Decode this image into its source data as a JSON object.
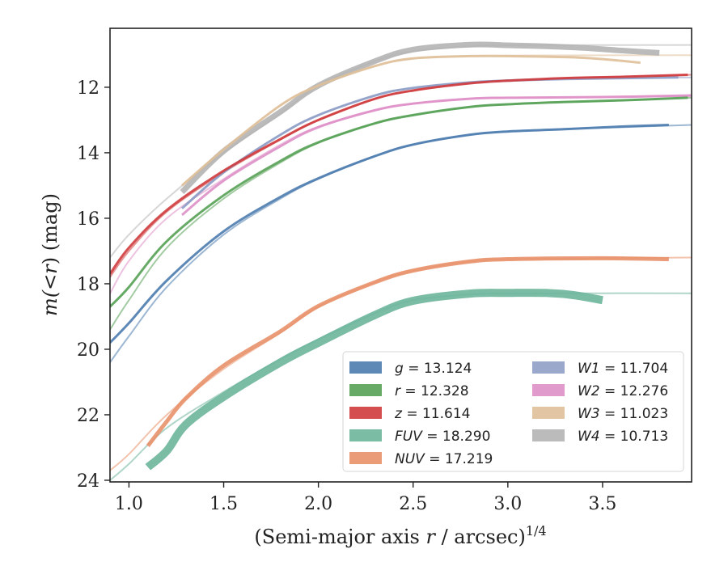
{
  "chart_data": {
    "type": "line",
    "xlabel_prefix": "(Semi-major axis ",
    "xlabel_var": "r",
    "xlabel_suffix": " / arcsec)",
    "xlabel_sup": "1/4",
    "ylabel_prefix": "m(<",
    "ylabel_var": "r",
    "ylabel_suffix": ") (mag)",
    "xlim": [
      0.9,
      3.97
    ],
    "ylim": [
      24.05,
      10.2
    ],
    "y_inverted": true,
    "x_ticks": [
      1.0,
      1.5,
      2.0,
      2.5,
      3.0,
      3.5
    ],
    "x_tick_labels": [
      "1.0",
      "1.5",
      "2.0",
      "2.5",
      "3.0",
      "3.5"
    ],
    "y_ticks": [
      12,
      14,
      16,
      18,
      20,
      22,
      24
    ],
    "y_tick_labels": [
      "12",
      "14",
      "16",
      "18",
      "20",
      "22",
      "24"
    ],
    "grid": false,
    "legend_position": "lower-right",
    "series": [
      {
        "key": "g",
        "var": "g",
        "value": "= 13.124",
        "color": "#4c7caf",
        "model": [
          [
            0.9,
            20.4
          ],
          [
            1.0,
            19.6
          ],
          [
            1.2,
            18.1
          ],
          [
            1.5,
            16.5
          ],
          [
            1.8,
            15.4
          ],
          [
            2.0,
            14.8
          ],
          [
            2.3,
            14.1
          ],
          [
            2.5,
            13.75
          ],
          [
            2.8,
            13.45
          ],
          [
            3.0,
            13.35
          ],
          [
            3.3,
            13.27
          ],
          [
            3.6,
            13.22
          ],
          [
            3.97,
            13.15
          ]
        ],
        "data": [
          [
            0.9,
            19.8
          ],
          [
            1.0,
            19.2
          ],
          [
            1.2,
            17.9
          ],
          [
            1.5,
            16.4
          ],
          [
            1.8,
            15.35
          ],
          [
            2.0,
            14.78
          ],
          [
            2.3,
            14.1
          ],
          [
            2.5,
            13.75
          ],
          [
            2.8,
            13.45
          ],
          [
            3.0,
            13.35
          ],
          [
            3.3,
            13.28
          ],
          [
            3.6,
            13.2
          ],
          [
            3.85,
            13.15
          ]
        ],
        "band_width": 3
      },
      {
        "key": "r",
        "var": "r",
        "value": "= 12.328",
        "color": "#55a155",
        "model": [
          [
            0.9,
            19.4
          ],
          [
            1.0,
            18.5
          ],
          [
            1.2,
            16.9
          ],
          [
            1.5,
            15.4
          ],
          [
            1.8,
            14.3
          ],
          [
            2.0,
            13.7
          ],
          [
            2.3,
            13.1
          ],
          [
            2.5,
            12.85
          ],
          [
            2.8,
            12.6
          ],
          [
            3.0,
            12.52
          ],
          [
            3.3,
            12.45
          ],
          [
            3.6,
            12.4
          ],
          [
            3.97,
            12.32
          ]
        ],
        "data": [
          [
            0.9,
            18.7
          ],
          [
            1.0,
            18.1
          ],
          [
            1.2,
            16.7
          ],
          [
            1.5,
            15.3
          ],
          [
            1.8,
            14.25
          ],
          [
            2.0,
            13.68
          ],
          [
            2.3,
            13.1
          ],
          [
            2.5,
            12.85
          ],
          [
            2.8,
            12.6
          ],
          [
            3.0,
            12.52
          ],
          [
            3.3,
            12.45
          ],
          [
            3.6,
            12.4
          ],
          [
            3.95,
            12.32
          ]
        ],
        "band_width": 3
      },
      {
        "key": "z",
        "var": "z",
        "value": "= 11.614",
        "color": "#cf3b3d",
        "model": [
          [
            0.9,
            17.8
          ],
          [
            1.0,
            17.0
          ],
          [
            1.2,
            15.8
          ],
          [
            1.5,
            14.6
          ],
          [
            1.8,
            13.6
          ],
          [
            2.0,
            13.0
          ],
          [
            2.3,
            12.35
          ],
          [
            2.5,
            12.1
          ],
          [
            2.8,
            11.88
          ],
          [
            3.0,
            11.8
          ],
          [
            3.3,
            11.72
          ],
          [
            3.6,
            11.68
          ],
          [
            3.97,
            11.62
          ]
        ],
        "data": [
          [
            0.9,
            17.7
          ],
          [
            1.0,
            16.9
          ],
          [
            1.2,
            15.75
          ],
          [
            1.5,
            14.55
          ],
          [
            1.8,
            13.58
          ],
          [
            2.0,
            13.0
          ],
          [
            2.3,
            12.35
          ],
          [
            2.5,
            12.1
          ],
          [
            2.8,
            11.88
          ],
          [
            3.0,
            11.8
          ],
          [
            3.3,
            11.72
          ],
          [
            3.6,
            11.68
          ],
          [
            3.95,
            11.62
          ]
        ],
        "band_width": 3
      },
      {
        "key": "fuv",
        "var": "FUV",
        "value": "= 18.290",
        "color": "#6db59b",
        "model": [
          [
            0.9,
            24.0
          ],
          [
            1.0,
            23.5
          ],
          [
            1.2,
            22.4
          ],
          [
            1.5,
            21.3
          ],
          [
            1.8,
            20.3
          ],
          [
            2.0,
            19.7
          ],
          [
            2.3,
            18.9
          ],
          [
            2.5,
            18.5
          ],
          [
            2.8,
            18.32
          ],
          [
            3.0,
            18.3
          ],
          [
            3.5,
            18.29
          ],
          [
            3.97,
            18.29
          ]
        ],
        "data": [
          [
            1.1,
            23.6
          ],
          [
            1.2,
            23.1
          ],
          [
            1.3,
            22.3
          ],
          [
            1.5,
            21.45
          ],
          [
            1.8,
            20.4
          ],
          [
            2.0,
            19.8
          ],
          [
            2.3,
            18.95
          ],
          [
            2.5,
            18.52
          ],
          [
            2.8,
            18.3
          ],
          [
            3.0,
            18.28
          ],
          [
            3.2,
            18.28
          ],
          [
            3.35,
            18.35
          ],
          [
            3.5,
            18.5
          ]
        ],
        "band_width": 10
      },
      {
        "key": "nuv",
        "var": "NUV",
        "value": "= 17.219",
        "color": "#e8916a",
        "model": [
          [
            0.9,
            23.7
          ],
          [
            1.0,
            23.2
          ],
          [
            1.2,
            22.0
          ],
          [
            1.5,
            20.6
          ],
          [
            1.8,
            19.5
          ],
          [
            2.0,
            18.7
          ],
          [
            2.3,
            17.95
          ],
          [
            2.5,
            17.6
          ],
          [
            2.8,
            17.32
          ],
          [
            3.0,
            17.25
          ],
          [
            3.5,
            17.22
          ],
          [
            3.97,
            17.2
          ]
        ],
        "data": [
          [
            1.1,
            22.95
          ],
          [
            1.2,
            22.2
          ],
          [
            1.3,
            21.5
          ],
          [
            1.5,
            20.5
          ],
          [
            1.8,
            19.45
          ],
          [
            2.0,
            18.68
          ],
          [
            2.3,
            17.95
          ],
          [
            2.5,
            17.6
          ],
          [
            2.8,
            17.32
          ],
          [
            3.0,
            17.25
          ],
          [
            3.5,
            17.22
          ],
          [
            3.85,
            17.25
          ]
        ],
        "band_width": 5
      },
      {
        "key": "w1",
        "var": "W1",
        "value": "= 11.704",
        "color": "#8f9fc7",
        "model": [
          [
            1.3,
            15.6
          ],
          [
            1.5,
            14.6
          ],
          [
            1.8,
            13.45
          ],
          [
            2.0,
            12.85
          ],
          [
            2.3,
            12.25
          ],
          [
            2.5,
            12.02
          ],
          [
            2.8,
            11.85
          ],
          [
            3.0,
            11.78
          ],
          [
            3.3,
            11.73
          ],
          [
            3.97,
            11.7
          ]
        ],
        "data": [
          [
            1.28,
            15.7
          ],
          [
            1.5,
            14.6
          ],
          [
            1.8,
            13.45
          ],
          [
            2.0,
            12.85
          ],
          [
            2.3,
            12.25
          ],
          [
            2.5,
            12.02
          ],
          [
            2.8,
            11.85
          ],
          [
            3.0,
            11.8
          ],
          [
            3.3,
            11.75
          ],
          [
            3.9,
            11.7
          ]
        ],
        "band_width": 3
      },
      {
        "key": "w2",
        "var": "W2",
        "value": "= 12.276",
        "color": "#de8fc6",
        "model": [
          [
            0.9,
            18.3
          ],
          [
            1.0,
            17.3
          ],
          [
            1.2,
            16.0
          ],
          [
            1.5,
            14.8
          ],
          [
            1.8,
            13.75
          ],
          [
            2.0,
            13.2
          ],
          [
            2.3,
            12.7
          ],
          [
            2.5,
            12.5
          ],
          [
            2.8,
            12.35
          ],
          [
            3.0,
            12.32
          ],
          [
            3.5,
            12.3
          ],
          [
            3.97,
            12.27
          ]
        ],
        "data": [
          [
            1.28,
            15.9
          ],
          [
            1.5,
            14.85
          ],
          [
            1.8,
            13.8
          ],
          [
            2.0,
            13.22
          ],
          [
            2.3,
            12.7
          ],
          [
            2.5,
            12.5
          ],
          [
            2.8,
            12.35
          ],
          [
            3.0,
            12.32
          ],
          [
            3.5,
            12.3
          ],
          [
            3.97,
            12.25
          ]
        ],
        "band_width": 3
      },
      {
        "key": "w3",
        "var": "W3",
        "value": "= 11.023",
        "color": "#dfc09a",
        "model": [
          [
            1.3,
            14.9
          ],
          [
            1.5,
            13.9
          ],
          [
            1.8,
            12.55
          ],
          [
            2.0,
            11.95
          ],
          [
            2.3,
            11.35
          ],
          [
            2.5,
            11.12
          ],
          [
            2.8,
            11.05
          ],
          [
            3.0,
            11.03
          ],
          [
            3.97,
            11.02
          ]
        ],
        "data": [
          [
            1.28,
            15.0
          ],
          [
            1.5,
            13.9
          ],
          [
            1.8,
            12.55
          ],
          [
            2.0,
            11.95
          ],
          [
            2.3,
            11.35
          ],
          [
            2.5,
            11.12
          ],
          [
            2.8,
            11.05
          ],
          [
            3.0,
            11.05
          ],
          [
            3.4,
            11.1
          ],
          [
            3.7,
            11.25
          ]
        ],
        "band_width": 3
      },
      {
        "key": "w4",
        "var": "W4",
        "value": "= 10.713",
        "color": "#b4b4b4",
        "model": [
          [
            0.9,
            17.2
          ],
          [
            1.0,
            16.5
          ],
          [
            1.2,
            15.4
          ],
          [
            1.5,
            14.0
          ],
          [
            1.8,
            12.8
          ],
          [
            2.0,
            11.95
          ],
          [
            2.3,
            11.2
          ],
          [
            2.5,
            10.9
          ],
          [
            2.8,
            10.75
          ],
          [
            3.0,
            10.72
          ],
          [
            3.97,
            10.71
          ]
        ],
        "data": [
          [
            1.28,
            15.2
          ],
          [
            1.5,
            13.95
          ],
          [
            1.8,
            12.75
          ],
          [
            2.0,
            11.95
          ],
          [
            2.3,
            11.2
          ],
          [
            2.5,
            10.85
          ],
          [
            2.8,
            10.7
          ],
          [
            3.0,
            10.72
          ],
          [
            3.2,
            10.75
          ],
          [
            3.4,
            10.8
          ],
          [
            3.6,
            10.88
          ],
          [
            3.8,
            10.95
          ]
        ],
        "band_width": 7
      }
    ]
  }
}
